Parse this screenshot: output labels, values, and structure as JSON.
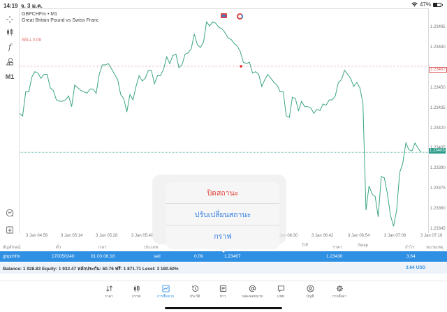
{
  "status_bar": {
    "time": "14:19",
    "date": "จ. 3 ม.ค.",
    "battery": "47%",
    "wifi_icon": "wifi-icon"
  },
  "chart": {
    "symbol_line": "GBPCHFm • M1",
    "description": "Great Britain Pound vs Swiss Franc",
    "sell_label": "SELL 0.09",
    "line_color": "#3aa57e",
    "sell_line_color": "#e06060",
    "current_line_color": "#2e9c8c",
    "y_ticks": [
      "1.23495",
      "1.23480",
      "1.23450",
      "1.23435",
      "1.23420",
      "1.23405",
      "1.23390",
      "1.23375",
      "1.23360",
      "1.23345"
    ],
    "sell_price_label": "1.23467",
    "current_price_label": "1.23403",
    "x_ticks": [
      "3 Jan 04:58",
      "3 Jan 05:14",
      "3 Jan 05:28",
      "3 Jan 05:40",
      "3 Jan 06:30",
      "3 Jan 06:42",
      "3 Jan 06:54",
      "3 Jan 07:06",
      "3 Jan 07:18"
    ]
  },
  "chart_data": {
    "type": "line",
    "title": "GBPCHFm • M1 — Great Britain Pound vs Swiss Franc",
    "xlabel": "",
    "ylabel": "",
    "ylim": [
      1.23335,
      1.23505
    ],
    "x_tick_labels": [
      "3 Jan 04:58",
      "3 Jan 05:14",
      "3 Jan 05:28",
      "3 Jan 05:40",
      "3 Jan 06:30",
      "3 Jan 06:42",
      "3 Jan 06:54",
      "3 Jan 07:06",
      "3 Jan 07:18"
    ],
    "annotations": [
      {
        "type": "hline",
        "label": "SELL 0.09",
        "value": 1.23467
      },
      {
        "type": "hline",
        "label": "bid",
        "value": 1.23403
      }
    ],
    "series": [
      {
        "name": "GBPCHFm",
        "values": [
          1.23432,
          1.2343,
          1.23448,
          1.23448,
          1.23459,
          1.23463,
          1.23462,
          1.23458,
          1.23461,
          1.23461,
          1.23451,
          1.23449,
          1.23442,
          1.23441,
          1.23441,
          1.23442,
          1.23445,
          1.23437,
          1.23453,
          1.23451,
          1.23449,
          1.23448,
          1.23447,
          1.2345,
          1.2345,
          1.23447,
          1.23461,
          1.23468,
          1.23468,
          1.23469,
          1.23465,
          1.23461,
          1.23457,
          1.23446,
          1.23443,
          1.23433,
          1.23446,
          1.23442,
          1.23452,
          1.2346,
          1.23456,
          1.23458,
          1.23464,
          1.23464,
          1.23454,
          1.2346,
          1.2346,
          1.23465,
          1.23474,
          1.23469,
          1.23475,
          1.23476,
          1.23466,
          1.23468,
          1.23476,
          1.23477,
          1.2348,
          1.23491,
          1.23483,
          1.23481,
          1.23485,
          1.235,
          1.23497,
          1.235,
          1.23499,
          1.23496,
          1.23495,
          1.23492,
          1.23488,
          1.23487,
          1.23484,
          1.23482,
          1.23478,
          1.2347,
          1.23469,
          1.2347,
          1.23462,
          1.23463,
          1.23461,
          1.23452,
          1.23457,
          1.23461,
          1.23458,
          1.23455,
          1.23453,
          1.23448,
          1.23448,
          1.2343,
          1.23429,
          1.23444,
          1.23443,
          1.23434,
          1.23441,
          1.23437,
          1.23437,
          1.23436,
          1.23432,
          1.23435,
          1.23434,
          1.23439,
          1.23438,
          1.23442,
          1.23442,
          1.23445,
          1.23455,
          1.23457,
          1.23464,
          1.23461,
          1.23458,
          1.23452,
          1.23455,
          1.23451,
          1.2344,
          1.2336,
          1.23378,
          1.23372,
          1.2337,
          1.23355,
          1.23385,
          1.23384,
          1.23372,
          1.23356,
          1.23348,
          1.2336,
          1.23388,
          1.23395,
          1.2341,
          1.23405,
          1.23404,
          1.2341,
          1.23406,
          1.23403
        ]
      }
    ]
  },
  "left_toolbar": [
    {
      "name": "crosshair-icon"
    },
    {
      "name": "candlestick-icon"
    },
    {
      "name": "function-icon"
    },
    {
      "name": "objects-icon"
    },
    {
      "name": "timeframe-button",
      "label": "M1"
    },
    {
      "name": "trade-chart-icon"
    },
    {
      "name": "new-order-icon"
    }
  ],
  "positions": {
    "headers": [
      "สัญลักษณ์",
      "ตั๋ว",
      "เวลา",
      "ประเภท",
      "ปริมาณ",
      "ราคา",
      "S/L",
      "T/P",
      "ราคา",
      "Swap",
      "กำไร",
      "หมายเหตุ"
    ],
    "rows": [
      {
        "symbol": "gbpchfm",
        "ticket": "170050240",
        "time": "01.03 06:18",
        "type": "sell",
        "volume": "0.09",
        "open_price": "1.23467",
        "sl": "",
        "tp": "",
        "price": "1.23430",
        "swap": "",
        "profit": "3.64",
        "comment": ""
      }
    ]
  },
  "summary": {
    "text": "Balance: 1 928.83 Equity: 1 932.47 หลักประกัน: 60.76 ฟรี: 1 871.71 Level: 3 180.50%",
    "profit": "3.64  USD"
  },
  "action_sheet": {
    "items": [
      {
        "label": "ปิดสถานะ",
        "style": "destructive"
      },
      {
        "label": "ปรับเปลี่ยนสถานะ",
        "style": "default"
      },
      {
        "label": "กราฟ",
        "style": "default"
      }
    ]
  },
  "tab_bar": {
    "active_color": "#2f8fe3",
    "items": [
      {
        "label": "ราคา",
        "icon": "quotes-icon"
      },
      {
        "label": "กราฟ",
        "icon": "chart-icon"
      },
      {
        "label": "การซื้อขาย",
        "icon": "trade-icon",
        "active": true
      },
      {
        "label": "ประวัติ",
        "icon": "history-icon"
      },
      {
        "label": "ข่าว",
        "icon": "news-icon"
      },
      {
        "label": "กล่องจดหมาย",
        "icon": "mailbox-icon"
      },
      {
        "label": "แชท",
        "icon": "chat-icon"
      },
      {
        "label": "บัญชี",
        "icon": "account-icon"
      },
      {
        "label": "การตั้งค่า",
        "icon": "settings-icon"
      }
    ]
  }
}
